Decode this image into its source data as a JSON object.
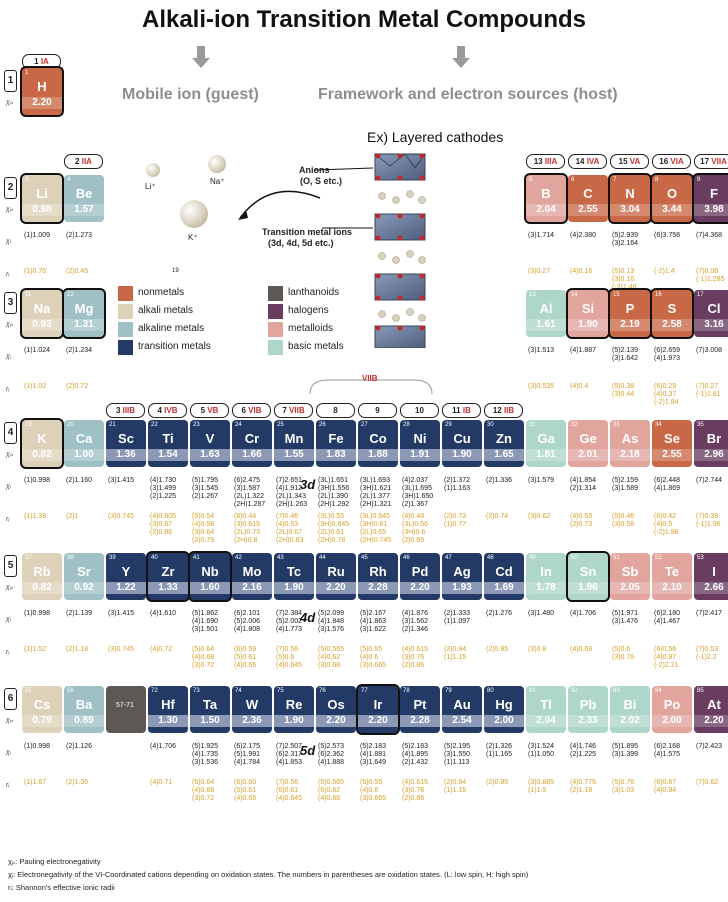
{
  "title": "Alkali-ion Transition Metal Compounds",
  "subtitle_left": "Mobile ion (guest)",
  "subtitle_right": "Framework and electron sources (host)",
  "example_title": "Ex) Layered cathodes",
  "anions_label": "Anions",
  "anions_detail": "(O, S etc.)",
  "tm_label": "Transition metal ions",
  "tm_detail": "(3d, 4d, 5d etc.)",
  "ion_labels": [
    "Li⁺",
    "Na⁺",
    "K⁺"
  ],
  "vii_b_label": "VIIB",
  "nineteen": "19",
  "row_labels": [
    "3d",
    "4d",
    "5d"
  ],
  "legend": [
    {
      "label": "nonmetals",
      "color": "#c96846"
    },
    {
      "label": "lanthanoids",
      "color": "#5d5854"
    },
    {
      "label": "alkali metals",
      "color": "#ddd1b9"
    },
    {
      "label": "halogens",
      "color": "#6a3d60"
    },
    {
      "label": "alkaline metals",
      "color": "#9fc1c6"
    },
    {
      "label": "metalloids",
      "color": "#e1a59e"
    },
    {
      "label": "transition metals",
      "color": "#233a66"
    },
    {
      "label": "basic metals",
      "color": "#aed6cb"
    }
  ],
  "group_headers": [
    {
      "num": "1",
      "roman": "IA"
    },
    {
      "num": "2",
      "roman": "IIA"
    },
    {
      "num": "3",
      "roman": "IIIB"
    },
    {
      "num": "4",
      "roman": "IVB"
    },
    {
      "num": "5",
      "roman": "VB"
    },
    {
      "num": "6",
      "roman": "VIB"
    },
    {
      "num": "7",
      "roman": "VIIB"
    },
    {
      "num": "8",
      "roman": ""
    },
    {
      "num": "9",
      "roman": ""
    },
    {
      "num": "10",
      "roman": ""
    },
    {
      "num": "11",
      "roman": "IB"
    },
    {
      "num": "12",
      "roman": "IIB"
    },
    {
      "num": "13",
      "roman": "IIIA"
    },
    {
      "num": "14",
      "roman": "IVA"
    },
    {
      "num": "15",
      "roman": "VA"
    },
    {
      "num": "16",
      "roman": "VIA"
    },
    {
      "num": "17",
      "roman": "VIIA"
    }
  ],
  "periods": [
    "1",
    "2",
    "3",
    "4",
    "5",
    "6"
  ],
  "chi_p_label": "χₚ",
  "chi_i_label": "χᵢ",
  "r_label": "rᵢ",
  "elements": [
    {
      "z": "1",
      "sym": "H",
      "en": "2.20",
      "cat": "nonmetal",
      "outlined": true,
      "chi": "",
      "rad": ""
    },
    {
      "z": "3",
      "sym": "Li",
      "en": "0.98",
      "cat": "alkali",
      "outlined": true,
      "chi": "(1)1.009",
      "rad": "(1)0.76"
    },
    {
      "z": "4",
      "sym": "Be",
      "en": "1.57",
      "cat": "alkaline",
      "chi": "(2)1.273",
      "rad": "(2)0.45"
    },
    {
      "z": "5",
      "sym": "B",
      "en": "2.04",
      "cat": "metalloid",
      "outlined": true,
      "chi": "(3)1.714",
      "rad": "(3)0.27"
    },
    {
      "z": "6",
      "sym": "C",
      "en": "2.55",
      "cat": "nonmetal",
      "chi": "(4)2.380",
      "rad": "(4)0.16"
    },
    {
      "z": "7",
      "sym": "N",
      "en": "3.04",
      "cat": "nonmetal",
      "outlined": true,
      "chi": "(5)2.939\n(3)2.164",
      "rad": "(5)0.13\n(3)0.16\n(-3)1.46"
    },
    {
      "z": "8",
      "sym": "O",
      "en": "3.44",
      "cat": "nonmetal",
      "outlined": true,
      "chi": "(6)3.758",
      "rad": "(-2)1.4"
    },
    {
      "z": "9",
      "sym": "F",
      "en": "3.98",
      "cat": "halogen",
      "outlined": true,
      "chi": "(7)4.368",
      "rad": "(7)0.08\n(-1)1.285"
    },
    {
      "z": "11",
      "sym": "Na",
      "en": "0.93",
      "cat": "alkali",
      "outlined": true,
      "chi": "(1)1.024",
      "rad": "(1)1.02"
    },
    {
      "z": "12",
      "sym": "Mg",
      "en": "1.31",
      "cat": "alkaline",
      "outlined": true,
      "chi": "(2)1.234",
      "rad": "(2)0.72"
    },
    {
      "z": "13",
      "sym": "Al",
      "en": "1.61",
      "cat": "basic",
      "chi": "(3)1.513",
      "rad": "(3)0.535"
    },
    {
      "z": "14",
      "sym": "Si",
      "en": "1.90",
      "cat": "metalloid",
      "outlined": true,
      "chi": "(4)1.887",
      "rad": "(4)0.4"
    },
    {
      "z": "15",
      "sym": "P",
      "en": "2.19",
      "cat": "nonmetal",
      "outlined": true,
      "chi": "(5)2.139\n(3)1.642",
      "rad": "(5)0.38\n(3)0.44"
    },
    {
      "z": "16",
      "sym": "S",
      "en": "2.58",
      "cat": "nonmetal",
      "outlined": true,
      "chi": "(6)2.659\n(4)1.973",
      "rad": "(6)0.29\n(4)0.37\n(-2)1.84"
    },
    {
      "z": "17",
      "sym": "Cl",
      "en": "3.16",
      "cat": "halogen",
      "chi": "(7)3.008",
      "rad": "(7)0.27\n(-1)1.81"
    },
    {
      "z": "19",
      "sym": "K",
      "en": "0.82",
      "cat": "alkali",
      "outlined": true,
      "chi": "(1)0.998",
      "rad": "(1)1.38"
    },
    {
      "z": "20",
      "sym": "Ca",
      "en": "1.00",
      "cat": "alkaline",
      "chi": "(2)1.160",
      "rad": "(2)1"
    },
    {
      "z": "21",
      "sym": "Sc",
      "en": "1.36",
      "cat": "tm",
      "chi": "(3)1.415",
      "rad": "(3)0.745"
    },
    {
      "z": "22",
      "sym": "Ti",
      "en": "1.54",
      "cat": "tm",
      "chi": "(4)1.730\n(3)1.499\n(2)1.225",
      "rad": "(4)0.605\n(3)0.67\n(2)0.86"
    },
    {
      "z": "23",
      "sym": "V",
      "en": "1.63",
      "cat": "tm",
      "chi": "(5)1.795\n(3)1.545\n(2)1.267",
      "rad": "(5)0.54\n(4)0.58\n(3)0.64\n(2)0.79"
    },
    {
      "z": "24",
      "sym": "Cr",
      "en": "1.66",
      "cat": "tm",
      "chi": "(6)2.475\n(3)1.587\n(2L)1.322\n(2H)1.287",
      "rad": "(6)0.44\n(3)0.615\n(2L)0.73\n(2H)0.8"
    },
    {
      "z": "25",
      "sym": "Mn",
      "en": "1.55",
      "cat": "tm",
      "chi": "(7)2.651\n(4)1.912\n(2L)1.343\n(2H)1.263",
      "rad": "(7)0.46\n(4)0.53\n(2L)0.67\n(2H)0.83"
    },
    {
      "z": "26",
      "sym": "Fe",
      "en": "1.83",
      "cat": "tm",
      "chi": "(3L)1.651\n(3H)1.556\n(2L)1.390\n(2H)1.292",
      "rad": "(3L)0.55\n(3H)0.645\n(2L)0.61\n(2H)0.78"
    },
    {
      "z": "27",
      "sym": "Co",
      "en": "1.88",
      "cat": "tm",
      "chi": "(3L)1.693\n(3H)1.621\n(2L)1.377\n(2H)1.321",
      "rad": "(3L)0.545\n(3H)0.61\n(2L)0.65\n(2H)0.745"
    },
    {
      "z": "28",
      "sym": "Ni",
      "en": "1.91",
      "cat": "tm",
      "chi": "(4)2.037\n(3L)1.695\n(3H)1.650\n(2)1.367",
      "rad": "(4)0.48\n(3L)0.56\n(3H)0.6\n(2)0.69"
    },
    {
      "z": "29",
      "sym": "Cu",
      "en": "1.90",
      "cat": "tm",
      "chi": "(2)1.372\n(1)1.163",
      "rad": "(2)0.73\n(1)0.77"
    },
    {
      "z": "30",
      "sym": "Zn",
      "en": "1.65",
      "cat": "tm",
      "chi": "(2)1.336",
      "rad": "(2)0.74"
    },
    {
      "z": "31",
      "sym": "Ga",
      "en": "1.81",
      "cat": "basic",
      "chi": "(3)1.579",
      "rad": "(3)0.62"
    },
    {
      "z": "32",
      "sym": "Ge",
      "en": "2.01",
      "cat": "metalloid",
      "chi": "(4)1.854\n(2)1.314",
      "rad": "(4)0.53\n(2)0.73"
    },
    {
      "z": "33",
      "sym": "As",
      "en": "2.18",
      "cat": "metalloid",
      "chi": "(5)2.159\n(3)1.589",
      "rad": "(5)0.46\n(3)0.58"
    },
    {
      "z": "34",
      "sym": "Se",
      "en": "2.55",
      "cat": "nonmetal",
      "chi": "(6)2.448\n(4)1.869",
      "rad": "(6)0.42\n(4)0.5\n(-2)1.98"
    },
    {
      "z": "35",
      "sym": "Br",
      "en": "2.96",
      "cat": "halogen",
      "chi": "(7)2.744",
      "rad": "(7)0.39\n(-1)1.96"
    },
    {
      "z": "37",
      "sym": "Rb",
      "en": "0.82",
      "cat": "alkali",
      "chi": "(1)0.998",
      "rad": "(1)1.52"
    },
    {
      "z": "38",
      "sym": "Sr",
      "en": "0.92",
      "cat": "alkaline",
      "chi": "(2)1.139",
      "rad": "(2)1.18"
    },
    {
      "z": "39",
      "sym": "Y",
      "en": "1.22",
      "cat": "tm",
      "chi": "(3)1.415",
      "rad": "(3)0.745"
    },
    {
      "z": "40",
      "sym": "Zr",
      "en": "1.33",
      "cat": "tm",
      "outlined": true,
      "chi": "(4)1.610",
      "rad": "(4)0.72"
    },
    {
      "z": "41",
      "sym": "Nb",
      "en": "1.60",
      "cat": "tm",
      "outlined": true,
      "chi": "(5)1.862\n(4)1.690\n(3)1.501",
      "rad": "(5)0.64\n(4)0.68\n(3)0.72"
    },
    {
      "z": "42",
      "sym": "Mo",
      "en": "2.16",
      "cat": "tm",
      "chi": "(6)2.101\n(5)2.006\n(4)1.808",
      "rad": "(6)0.59\n(5)0.61\n(4)0.65"
    },
    {
      "z": "43",
      "sym": "Tc",
      "en": "1.90",
      "cat": "tm",
      "chi": "(7)2.384\n(5)2.002\n(4)1.773",
      "rad": "(7)0.56\n(5)0.6\n(4)0.645"
    },
    {
      "z": "44",
      "sym": "Ru",
      "en": "2.20",
      "cat": "tm",
      "chi": "(5)2.099\n(4)1.848\n(3)1.576",
      "rad": "(5)0.565\n(4)0.62\n(3)0.68"
    },
    {
      "z": "45",
      "sym": "Rh",
      "en": "2.28",
      "cat": "tm",
      "chi": "(5)2.167\n(4)1.863\n(3)1.622",
      "rad": "(5)0.55\n(4)0.6\n(3)0.665"
    },
    {
      "z": "46",
      "sym": "Pd",
      "en": "2.20",
      "cat": "tm",
      "chi": "(4)1.876\n(3)1.562\n(2)1.346",
      "rad": "(4)0.615\n(3)0.76\n(2)0.86"
    },
    {
      "z": "47",
      "sym": "Ag",
      "en": "1.93",
      "cat": "tm",
      "chi": "(2)1.333\n(1)1.097",
      "rad": "(2)0.94\n(1)1.15"
    },
    {
      "z": "48",
      "sym": "Cd",
      "en": "1.69",
      "cat": "tm",
      "chi": "(2)1.276",
      "rad": "(2)0.95"
    },
    {
      "z": "49",
      "sym": "In",
      "en": "1.78",
      "cat": "basic",
      "chi": "(3)1.480",
      "rad": "(3)0.8"
    },
    {
      "z": "50",
      "sym": "Sn",
      "en": "1.96",
      "cat": "basic",
      "outlined": true,
      "chi": "(4)1.706",
      "rad": "(4)0.69"
    },
    {
      "z": "51",
      "sym": "Sb",
      "en": "2.05",
      "cat": "metalloid",
      "chi": "(5)1.971\n(3)1.476",
      "rad": "(5)0.6\n(3)0.76"
    },
    {
      "z": "52",
      "sym": "Te",
      "en": "2.10",
      "cat": "metalloid",
      "chi": "(6)2.180\n(4)1.467",
      "rad": "(6)0.56\n(4)0.97\n(-2)2.21"
    },
    {
      "z": "53",
      "sym": "I",
      "en": "2.66",
      "cat": "halogen",
      "chi": "(7)2.417",
      "rad": "(7)0.53\n(-1)2.2"
    },
    {
      "z": "55",
      "sym": "Cs",
      "en": "0.79",
      "cat": "alkali",
      "chi": "(1)0.998",
      "rad": "(1)1.67"
    },
    {
      "z": "56",
      "sym": "Ba",
      "en": "0.89",
      "cat": "alkaline",
      "chi": "(2)1.126",
      "rad": "(2)1.35"
    },
    {
      "z": "57-71",
      "sym": "",
      "en": "",
      "cat": "lan",
      "chi": "",
      "rad": ""
    },
    {
      "z": "72",
      "sym": "Hf",
      "en": "1.30",
      "cat": "tm",
      "chi": "(4)1.706",
      "rad": "(4)0.71"
    },
    {
      "z": "73",
      "sym": "Ta",
      "en": "1.50",
      "cat": "tm",
      "chi": "(5)1.925\n(4)1.735\n(3)1.536",
      "rad": "(5)0.64\n(4)0.68\n(3)0.72"
    },
    {
      "z": "74",
      "sym": "W",
      "en": "2.36",
      "cat": "tm",
      "chi": "(6)2.175\n(5)1.991\n(4)1.784",
      "rad": "(6)0.60\n(5)0.61\n(4)0.65"
    },
    {
      "z": "75",
      "sym": "Re",
      "en": "1.90",
      "cat": "tm",
      "chi": "(7)2.507\n(6)2.317\n(4)1.853",
      "rad": "(7)0.56\n(6)0.61\n(4)0.645"
    },
    {
      "z": "76",
      "sym": "Os",
      "en": "2.20",
      "cat": "tm",
      "chi": "(5)2.573\n(6)2.362\n(4)1.888",
      "rad": "(5)0.565\n(6)0.62\n(4)0.68"
    },
    {
      "z": "77",
      "sym": "Ir",
      "en": "2.20",
      "cat": "tm",
      "outlined": true,
      "chi": "(5)2.183\n(4)1.881\n(3)1.649",
      "rad": "(5)0.55\n(4)0.6\n(3)0.665"
    },
    {
      "z": "78",
      "sym": "Pt",
      "en": "2.28",
      "cat": "tm",
      "chi": "(5)2.183\n(4)1.895\n(2)1.432",
      "rad": "(4)0.615\n(3)0.76\n(2)0.86"
    },
    {
      "z": "79",
      "sym": "Au",
      "en": "2.54",
      "cat": "tm",
      "chi": "(5)2.195\n(3)1.550\n(1)1.113",
      "rad": "(2)0.94\n(1)1.15"
    },
    {
      "z": "80",
      "sym": "Hg",
      "en": "2.00",
      "cat": "tm",
      "chi": "(2)1.326\n(1)1.165",
      "rad": "(2)0.95"
    },
    {
      "z": "81",
      "sym": "Tl",
      "en": "2.04",
      "cat": "basic",
      "chi": "(3)1.524\n(1)1.050",
      "rad": "(3)0.885\n(1)1.5"
    },
    {
      "z": "82",
      "sym": "Pb",
      "en": "2.33",
      "cat": "basic",
      "chi": "(4)1.746\n(2)1.225",
      "rad": "(4)0.775\n(2)1.19"
    },
    {
      "z": "83",
      "sym": "Bi",
      "en": "2.02",
      "cat": "basic",
      "chi": "(5)1.895\n(3)1.399",
      "rad": "(5)0.76\n(3)1.03"
    },
    {
      "z": "84",
      "sym": "Po",
      "en": "2.00",
      "cat": "metalloid",
      "chi": "(6)2.168\n(4)1.575",
      "rad": "(6)0.67\n(4)0.94"
    },
    {
      "z": "85",
      "sym": "At",
      "en": "2.20",
      "cat": "halogen",
      "chi": "(7)2.423",
      "rad": "(7)0.62"
    }
  ],
  "notes": [
    "χₚ: Pauling electronegativity",
    "χᵢ: Electronegativity of the VI-Coordinated cations depending on oxidation states. The numbers in parentheses are oxidation states. (L: low spin, H: high spin)",
    "rᵢ: Shannon's effective ionic radii"
  ]
}
